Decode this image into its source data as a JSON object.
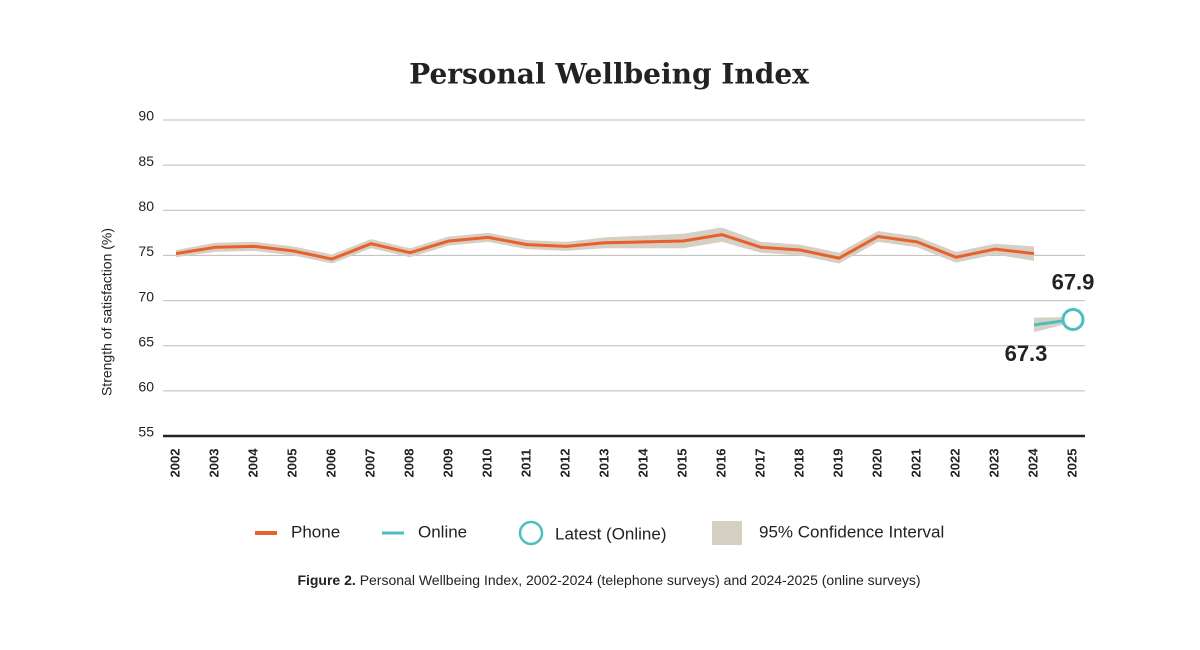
{
  "chart_data": {
    "type": "line",
    "title": "Personal Wellbeing Index",
    "y_label": "Strength of satisfaction (%)",
    "categories": [
      "2002",
      "2003",
      "2004",
      "2005",
      "2006",
      "2007",
      "2008",
      "2009",
      "2010",
      "2011",
      "2012",
      "2013",
      "2014",
      "2015",
      "2016",
      "2017",
      "2018",
      "2019",
      "2020",
      "2021",
      "2022",
      "2023",
      "2024",
      "2025"
    ],
    "series": [
      {
        "name": "Phone",
        "color": "#e8602c",
        "values": [
          75.2,
          75.9,
          76.0,
          75.5,
          74.6,
          76.3,
          75.3,
          76.6,
          77.0,
          76.2,
          76.0,
          76.4,
          76.5,
          76.6,
          77.3,
          75.9,
          75.6,
          74.7,
          77.1,
          76.5,
          74.8,
          75.7,
          75.2,
          null
        ],
        "lower": [
          74.8,
          75.4,
          75.5,
          75.0,
          74.1,
          75.8,
          74.8,
          76.1,
          76.5,
          75.7,
          75.5,
          75.8,
          75.8,
          75.8,
          76.5,
          75.3,
          75.0,
          74.1,
          76.5,
          75.9,
          74.2,
          75.1,
          74.4,
          null
        ],
        "upper": [
          75.6,
          76.4,
          76.5,
          76.0,
          75.1,
          76.8,
          75.8,
          77.1,
          77.5,
          76.7,
          76.5,
          77.0,
          77.2,
          77.4,
          78.1,
          76.5,
          76.2,
          75.3,
          77.7,
          77.1,
          75.4,
          76.3,
          76.0,
          null
        ]
      },
      {
        "name": "Online",
        "color": "#4bbfbf",
        "values": [
          null,
          null,
          null,
          null,
          null,
          null,
          null,
          null,
          null,
          null,
          null,
          null,
          null,
          null,
          null,
          null,
          null,
          null,
          null,
          null,
          null,
          null,
          67.3,
          67.9
        ],
        "lower": [
          null,
          null,
          null,
          null,
          null,
          null,
          null,
          null,
          null,
          null,
          null,
          null,
          null,
          null,
          null,
          null,
          null,
          null,
          null,
          null,
          null,
          null,
          66.5,
          67.6
        ],
        "upper": [
          null,
          null,
          null,
          null,
          null,
          null,
          null,
          null,
          null,
          null,
          null,
          null,
          null,
          null,
          null,
          null,
          null,
          null,
          null,
          null,
          null,
          null,
          68.1,
          68.2
        ]
      }
    ],
    "latest_label": "Latest (Online)",
    "ci_label": "95% Confidence Interval",
    "ci_color": "#d6cfc4",
    "ylim": [
      55,
      90
    ],
    "yticks": [
      55,
      60,
      65,
      70,
      75,
      80,
      85,
      90
    ],
    "grid": true,
    "caption": {
      "label": "Figure 2.",
      "text": "Personal Wellbeing Index, 2002-2024 (telephone surveys) and 2024-2025 (online surveys)"
    }
  }
}
